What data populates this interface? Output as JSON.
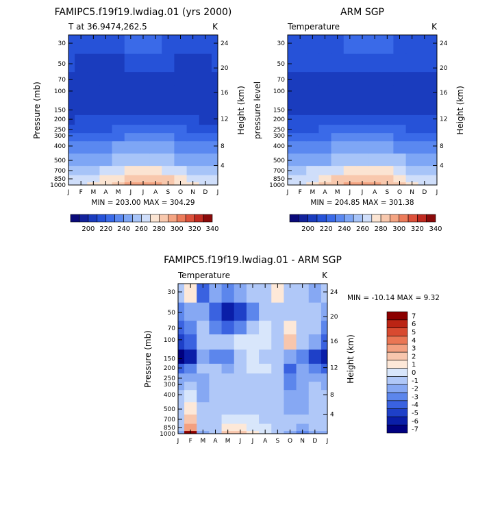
{
  "chart_data": [
    {
      "type": "heatmap",
      "title": "FAMIPC5.f19f19.lwdiag.01 (yrs 2000)",
      "subtitle": "T at 36.9474,262.5",
      "units": "K",
      "ylabel": "Pressure (mb)",
      "ylabel_right": "Height (km)",
      "stats": "MIN = 203.00  MAX = 304.29",
      "x": [
        "J",
        "F",
        "M",
        "A",
        "M",
        "J",
        "J",
        "A",
        "S",
        "O",
        "N",
        "D",
        "J"
      ],
      "y": [
        "1000",
        "850",
        "700",
        "500",
        "400",
        "300",
        "250",
        "200",
        "150",
        "100",
        "70",
        "50",
        "30"
      ],
      "y_right": [
        "4",
        "8",
        "12",
        "16",
        "20",
        "24"
      ],
      "values": [
        [
          270,
          272,
          277,
          283,
          290,
          296,
          300,
          298,
          292,
          284,
          276,
          271,
          270
        ],
        [
          266,
          268,
          272,
          278,
          284,
          289,
          292,
          290,
          285,
          278,
          272,
          267,
          266
        ],
        [
          260,
          261,
          264,
          268,
          272,
          277,
          279,
          278,
          274,
          268,
          263,
          260,
          260
        ],
        [
          246,
          247,
          249,
          252,
          255,
          259,
          262,
          261,
          258,
          254,
          249,
          246,
          246
        ],
        [
          237,
          238,
          240,
          242,
          245,
          248,
          250,
          250,
          247,
          243,
          239,
          237,
          237
        ],
        [
          228,
          229,
          230,
          232,
          234,
          236,
          238,
          238,
          236,
          233,
          230,
          228,
          228
        ],
        [
          221,
          222,
          223,
          224,
          226,
          228,
          229,
          229,
          228,
          226,
          223,
          221,
          221
        ],
        [
          214,
          215,
          216,
          217,
          218,
          219,
          220,
          220,
          220,
          218,
          216,
          214,
          214
        ],
        [
          210,
          211,
          212,
          212,
          211,
          211,
          211,
          212,
          212,
          211,
          211,
          211,
          210
        ],
        [
          212,
          211,
          210,
          210,
          209,
          209,
          209,
          209,
          209,
          210,
          211,
          212,
          212
        ],
        [
          211,
          210,
          209,
          209,
          209,
          210,
          210,
          210,
          210,
          210,
          210,
          211,
          211
        ],
        [
          215,
          214,
          213,
          213,
          214,
          216,
          217,
          217,
          216,
          214,
          214,
          214,
          215
        ],
        [
          221,
          220,
          219,
          220,
          222,
          225,
          227,
          227,
          224,
          222,
          221,
          221,
          221
        ]
      ],
      "colorbar": {
        "labels": [
          "200",
          "220",
          "240",
          "260",
          "280",
          "300",
          "320",
          "340"
        ]
      }
    },
    {
      "type": "heatmap",
      "title": "ARM SGP",
      "subtitle": "Temperature",
      "units": "K",
      "ylabel": "pressure level",
      "ylabel_right": "Height (km)",
      "stats": "MIN = 204.85  MAX = 301.38",
      "x": [
        "J",
        "F",
        "M",
        "A",
        "M",
        "J",
        "J",
        "A",
        "S",
        "O",
        "N",
        "D",
        "J"
      ],
      "y": [
        "1000",
        "850",
        "700",
        "500",
        "400",
        "300",
        "250",
        "200",
        "150",
        "100",
        "70",
        "50",
        "30"
      ],
      "y_right": [
        "4",
        "8",
        "12",
        "16",
        "20",
        "24"
      ],
      "values": [
        [
          272,
          274,
          279,
          285,
          291,
          297,
          300,
          299,
          293,
          285,
          278,
          273,
          272
        ],
        [
          267,
          269,
          273,
          279,
          285,
          290,
          293,
          291,
          286,
          279,
          273,
          268,
          267
        ],
        [
          261,
          262,
          265,
          269,
          273,
          278,
          280,
          279,
          275,
          269,
          264,
          261,
          261
        ],
        [
          247,
          248,
          250,
          253,
          256,
          260,
          263,
          262,
          259,
          255,
          250,
          247,
          247
        ],
        [
          238,
          239,
          241,
          243,
          246,
          249,
          251,
          251,
          248,
          244,
          240,
          238,
          238
        ],
        [
          229,
          230,
          231,
          233,
          235,
          237,
          239,
          239,
          237,
          234,
          231,
          229,
          229
        ],
        [
          222,
          223,
          224,
          225,
          227,
          229,
          230,
          230,
          229,
          227,
          224,
          222,
          222
        ],
        [
          215,
          216,
          217,
          218,
          219,
          220,
          221,
          221,
          221,
          219,
          217,
          215,
          215
        ],
        [
          212,
          212,
          212,
          211,
          210,
          209,
          208,
          208,
          209,
          210,
          211,
          212,
          212
        ],
        [
          213,
          213,
          212,
          211,
          210,
          209,
          209,
          209,
          210,
          211,
          212,
          213,
          213
        ],
        [
          214,
          213,
          211,
          211,
          211,
          212,
          212,
          212,
          212,
          212,
          212,
          212,
          214
        ],
        [
          218,
          217,
          216,
          216,
          217,
          218,
          219,
          219,
          218,
          217,
          216,
          217,
          218
        ],
        [
          222,
          221,
          220,
          221,
          224,
          227,
          229,
          229,
          226,
          223,
          222,
          222,
          222
        ]
      ],
      "colorbar": {
        "labels": [
          "200",
          "220",
          "240",
          "260",
          "280",
          "300",
          "320",
          "340"
        ]
      }
    },
    {
      "type": "heatmap",
      "title": "FAMIPC5.f19f19.lwdiag.01 - ARM SGP",
      "subtitle": "Temperature",
      "units": "K",
      "ylabel": "Pressure (mb)",
      "ylabel_right": "Height (km)",
      "stats": "MIN = -10.14  MAX =    9.32",
      "x": [
        "J",
        "F",
        "M",
        "A",
        "M",
        "J",
        "J",
        "A",
        "S",
        "O",
        "N",
        "D",
        "J"
      ],
      "y": [
        "1000",
        "850",
        "700",
        "500",
        "400",
        "300",
        "250",
        "200",
        "150",
        "100",
        "70",
        "50",
        "30"
      ],
      "y_right": [
        "4",
        "8",
        "12",
        "16",
        "20",
        "24"
      ],
      "values": [
        [
          -2,
          7,
          -2,
          -1,
          2,
          2,
          1,
          0,
          -1,
          -2,
          -3,
          -2,
          -2
        ],
        [
          -1,
          3,
          -1,
          -1,
          1,
          1,
          0,
          0,
          -1,
          -1,
          -2,
          -1,
          -1
        ],
        [
          -1,
          2,
          -1,
          -1,
          0,
          0,
          0,
          -1,
          -1,
          -1,
          -1,
          -1,
          -1
        ],
        [
          -1,
          1,
          -1,
          -1,
          -1,
          -1,
          -1,
          -1,
          -1,
          -2,
          -2,
          -1,
          -1
        ],
        [
          -1,
          0,
          -2,
          -1,
          -1,
          -1,
          -1,
          -1,
          -1,
          -2,
          -2,
          -1,
          -1
        ],
        [
          -2,
          -1,
          -2,
          -1,
          -1,
          -1,
          -1,
          -1,
          -1,
          -3,
          -2,
          -1,
          -2
        ],
        [
          -2,
          -2,
          -2,
          -1,
          -1,
          -1,
          -1,
          -1,
          -1,
          -3,
          -2,
          -2,
          -2
        ],
        [
          -4,
          -3,
          -1,
          -1,
          -2,
          -1,
          0,
          0,
          -1,
          -4,
          -2,
          -3,
          -4
        ],
        [
          -7,
          -6,
          -2,
          -3,
          -3,
          -1,
          0,
          -1,
          -1,
          -2,
          -3,
          -5,
          -6
        ],
        [
          -5,
          -4,
          -1,
          -1,
          -1,
          0,
          0,
          0,
          -1,
          2,
          -1,
          -2,
          -4
        ],
        [
          -4,
          -3,
          -1,
          -3,
          -4,
          -3,
          -1,
          0,
          -1,
          1,
          -1,
          -1,
          -3
        ],
        [
          -3,
          -2,
          -2,
          -4,
          -6,
          -5,
          -3,
          -1,
          -1,
          -1,
          -1,
          -1,
          -2
        ],
        [
          -1,
          1,
          -4,
          -2,
          -3,
          -2,
          -1,
          -1,
          1,
          -1,
          -1,
          -2,
          -1
        ]
      ],
      "colorbar": {
        "labels": [
          "-7",
          "-6",
          "-5",
          "-4",
          "-3",
          "-2",
          "-1",
          "0",
          "1",
          "2",
          "3",
          "4",
          "5",
          "6",
          "7"
        ]
      }
    }
  ],
  "colors": {
    "abs_scale": [
      "#0a0a7a",
      "#12229c",
      "#1a3cbe",
      "#2652d8",
      "#3a6ae8",
      "#5a88f0",
      "#7ea6f5",
      "#a7c4f8",
      "#cfdefa",
      "#fbe4d2",
      "#f8c8ad",
      "#f4a482",
      "#ec7b5a",
      "#dc503a",
      "#c02a20",
      "#8a0a0a"
    ],
    "diff_scale": [
      "#000080",
      "#0a1ea8",
      "#1e40c8",
      "#3a62e0",
      "#5c86ec",
      "#86a8f3",
      "#b0c8f8",
      "#d8e6fb",
      "#fde8d8",
      "#f8c6ad",
      "#f3a080",
      "#ea7654",
      "#d84a30",
      "#bb2414",
      "#8b0000"
    ]
  }
}
